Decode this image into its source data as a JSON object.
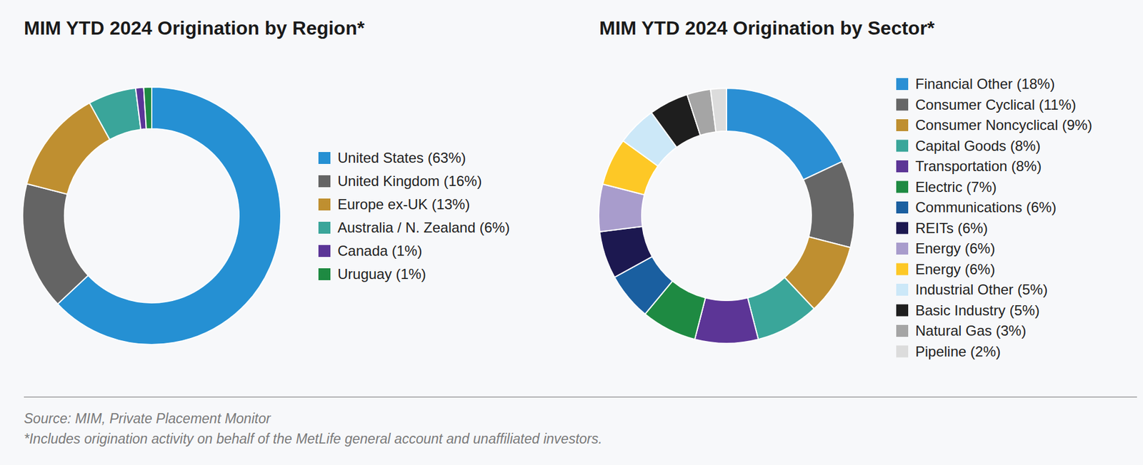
{
  "chart_data": [
    {
      "type": "donut",
      "title": "MIM YTD 2024 Origination by Region*",
      "categories": [
        "United States (63%)",
        "United Kingdom (16%)",
        "Europe ex-UK (13%)",
        "Australia / N. Zealand (6%)",
        "Canada (1%)",
        "Uruguay (1%)"
      ],
      "values": [
        63,
        16,
        13,
        6,
        1,
        1
      ],
      "colors": [
        "#2590d3",
        "#646464",
        "#bf8f30",
        "#3aa59a",
        "#5b3597",
        "#1e8a42"
      ],
      "legend": "right"
    },
    {
      "type": "donut",
      "title": "MIM YTD 2024 Origination by Sector*",
      "categories": [
        "Financial Other (18%)",
        "Consumer Cyclical (11%)",
        "Consumer Noncyclical (9%)",
        "Capital Goods (8%)",
        "Transportation (8%)",
        "Electric (7%)",
        "Communications (6%)",
        "REITs (6%)",
        "Energy (6%)",
        "Energy (6%)",
        "Industrial Other (5%)",
        "Basic Industry (5%)",
        "Natural Gas (3%)",
        "Pipeline (2%)"
      ],
      "values": [
        18,
        11,
        9,
        8,
        8,
        7,
        6,
        6,
        6,
        6,
        5,
        5,
        3,
        2
      ],
      "colors": [
        "#2a8fd4",
        "#666666",
        "#bf8f30",
        "#3aa69a",
        "#5c3596",
        "#1e8a42",
        "#1a5fa0",
        "#1c1850",
        "#a89ccc",
        "#fdc826",
        "#cce8f8",
        "#1e1e1e",
        "#a5a5a5",
        "#dcdcdc"
      ],
      "legend": "right"
    }
  ],
  "notes": {
    "source": "Source: MIM, Private Placement Monitor",
    "footnote": "*Includes origination activity on behalf of the MetLife general account and unaffiliated investors."
  }
}
